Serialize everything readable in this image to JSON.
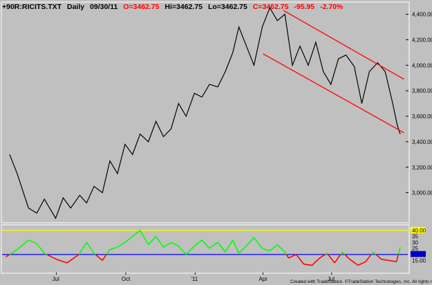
{
  "header": {
    "symbol": "+90R:RICITS.TXT",
    "interval": "Daily",
    "date": "09/30/11",
    "open": "O=3462.75",
    "high": "Hi=3462.75",
    "low": "Lo=3462.75",
    "close": "C=3462.75",
    "change": "-95.95",
    "pct_change": "-2.70%"
  },
  "footer": {
    "credit": "Created with TradeStation. ©TradeStation Technologies, Inc. All rights reserved."
  },
  "colors": {
    "background": "#c0c0c0",
    "price_line": "#000000",
    "channel": "#ff0000",
    "header_red": "#ff0000",
    "osc_above": "#00ff00",
    "osc_below": "#ff0000",
    "upper_ref": "#ffff00",
    "lower_ref": "#0000ff",
    "panel_border": "#ffffff"
  },
  "chart_data": [
    {
      "type": "line",
      "name": "price",
      "x_ticks": [
        "Jul",
        "Oct",
        "'11",
        "Apr",
        "Jul"
      ],
      "x_tick_dates": [
        "2010-07-01",
        "2010-10-01",
        "2011-01-01",
        "2011-04-01",
        "2011-07-01"
      ],
      "y_ticks": [
        "4,400.00",
        "4,200.00",
        "4,000.00",
        "3,800.00",
        "3,600.00",
        "3,400.00",
        "3,200.00",
        "3,000.00"
      ],
      "ylim": [
        2770,
        4490
      ],
      "x_range": [
        "2010-04-20",
        "2011-10-10"
      ],
      "last_value": "3462.75",
      "points": [
        [
          "2010-04-30",
          3300
        ],
        [
          "2010-05-10",
          3150
        ],
        [
          "2010-05-25",
          2880
        ],
        [
          "2010-06-05",
          2840
        ],
        [
          "2010-06-15",
          2950
        ],
        [
          "2010-06-30",
          2800
        ],
        [
          "2010-07-10",
          2960
        ],
        [
          "2010-07-20",
          2880
        ],
        [
          "2010-08-01",
          2980
        ],
        [
          "2010-08-10",
          2920
        ],
        [
          "2010-08-20",
          3050
        ],
        [
          "2010-08-31",
          3000
        ],
        [
          "2010-09-10",
          3250
        ],
        [
          "2010-09-20",
          3150
        ],
        [
          "2010-09-30",
          3380
        ],
        [
          "2010-10-10",
          3300
        ],
        [
          "2010-10-20",
          3460
        ],
        [
          "2010-10-31",
          3400
        ],
        [
          "2010-11-10",
          3560
        ],
        [
          "2010-11-20",
          3440
        ],
        [
          "2010-11-30",
          3500
        ],
        [
          "2010-12-10",
          3700
        ],
        [
          "2010-12-20",
          3600
        ],
        [
          "2010-12-31",
          3780
        ],
        [
          "2011-01-10",
          3750
        ],
        [
          "2011-01-20",
          3850
        ],
        [
          "2011-01-31",
          3830
        ],
        [
          "2011-02-10",
          3950
        ],
        [
          "2011-02-20",
          4100
        ],
        [
          "2011-02-28",
          4300
        ],
        [
          "2011-03-10",
          4150
        ],
        [
          "2011-03-20",
          4000
        ],
        [
          "2011-03-31",
          4300
        ],
        [
          "2011-04-10",
          4450
        ],
        [
          "2011-04-20",
          4350
        ],
        [
          "2011-04-30",
          4400
        ],
        [
          "2011-05-05",
          4200
        ],
        [
          "2011-05-10",
          4000
        ],
        [
          "2011-05-20",
          4150
        ],
        [
          "2011-05-31",
          4000
        ],
        [
          "2011-06-10",
          4180
        ],
        [
          "2011-06-20",
          3950
        ],
        [
          "2011-06-30",
          3850
        ],
        [
          "2011-07-10",
          4050
        ],
        [
          "2011-07-20",
          4080
        ],
        [
          "2011-07-31",
          3990
        ],
        [
          "2011-08-10",
          3700
        ],
        [
          "2011-08-20",
          3950
        ],
        [
          "2011-08-31",
          4020
        ],
        [
          "2011-09-10",
          3950
        ],
        [
          "2011-09-20",
          3700
        ],
        [
          "2011-09-26",
          3530
        ],
        [
          "2011-09-30",
          3460
        ]
      ],
      "channel_lines": [
        {
          "start": [
            "2011-04-28",
            4430
          ],
          "end": [
            "2011-10-05",
            3890
          ]
        },
        {
          "start": [
            "2011-04-01",
            4090
          ],
          "end": [
            "2011-10-05",
            3470
          ]
        }
      ]
    },
    {
      "type": "line",
      "name": "oscillator",
      "ylim": [
        5,
        44
      ],
      "y_ticks": [
        "40.00",
        "35",
        "30",
        "25",
        "20.00",
        "15.00"
      ],
      "reference_levels": [
        40,
        20
      ],
      "points": [
        [
          "2010-04-25",
          18
        ],
        [
          "2010-05-10",
          24
        ],
        [
          "2010-05-25",
          32
        ],
        [
          "2010-06-05",
          29
        ],
        [
          "2010-06-15",
          21
        ],
        [
          "2010-07-01",
          16
        ],
        [
          "2010-07-15",
          13
        ],
        [
          "2010-07-31",
          20
        ],
        [
          "2010-08-10",
          30
        ],
        [
          "2010-08-20",
          21
        ],
        [
          "2010-08-31",
          15
        ],
        [
          "2010-09-10",
          24
        ],
        [
          "2010-09-20",
          26
        ],
        [
          "2010-09-30",
          30
        ],
        [
          "2010-10-10",
          35
        ],
        [
          "2010-10-20",
          40
        ],
        [
          "2010-10-31",
          28
        ],
        [
          "2010-11-10",
          35
        ],
        [
          "2010-11-20",
          26
        ],
        [
          "2010-11-30",
          30
        ],
        [
          "2010-12-10",
          27
        ],
        [
          "2010-12-20",
          20
        ],
        [
          "2010-12-31",
          27
        ],
        [
          "2011-01-10",
          32
        ],
        [
          "2011-01-20",
          25
        ],
        [
          "2011-01-31",
          30
        ],
        [
          "2011-02-10",
          22
        ],
        [
          "2011-02-20",
          32
        ],
        [
          "2011-02-28",
          21
        ],
        [
          "2011-03-10",
          27
        ],
        [
          "2011-03-20",
          34
        ],
        [
          "2011-03-31",
          25
        ],
        [
          "2011-04-10",
          23
        ],
        [
          "2011-04-20",
          28
        ],
        [
          "2011-04-30",
          22
        ],
        [
          "2011-05-05",
          17
        ],
        [
          "2011-05-15",
          20
        ],
        [
          "2011-05-25",
          12
        ],
        [
          "2011-06-05",
          11
        ],
        [
          "2011-06-15",
          17
        ],
        [
          "2011-06-25",
          21
        ],
        [
          "2011-07-05",
          13
        ],
        [
          "2011-07-15",
          22
        ],
        [
          "2011-07-25",
          16
        ],
        [
          "2011-08-05",
          11
        ],
        [
          "2011-08-15",
          14
        ],
        [
          "2011-08-25",
          22
        ],
        [
          "2011-09-05",
          16
        ],
        [
          "2011-09-15",
          15
        ],
        [
          "2011-09-25",
          14
        ],
        [
          "2011-09-30",
          26
        ]
      ]
    }
  ]
}
